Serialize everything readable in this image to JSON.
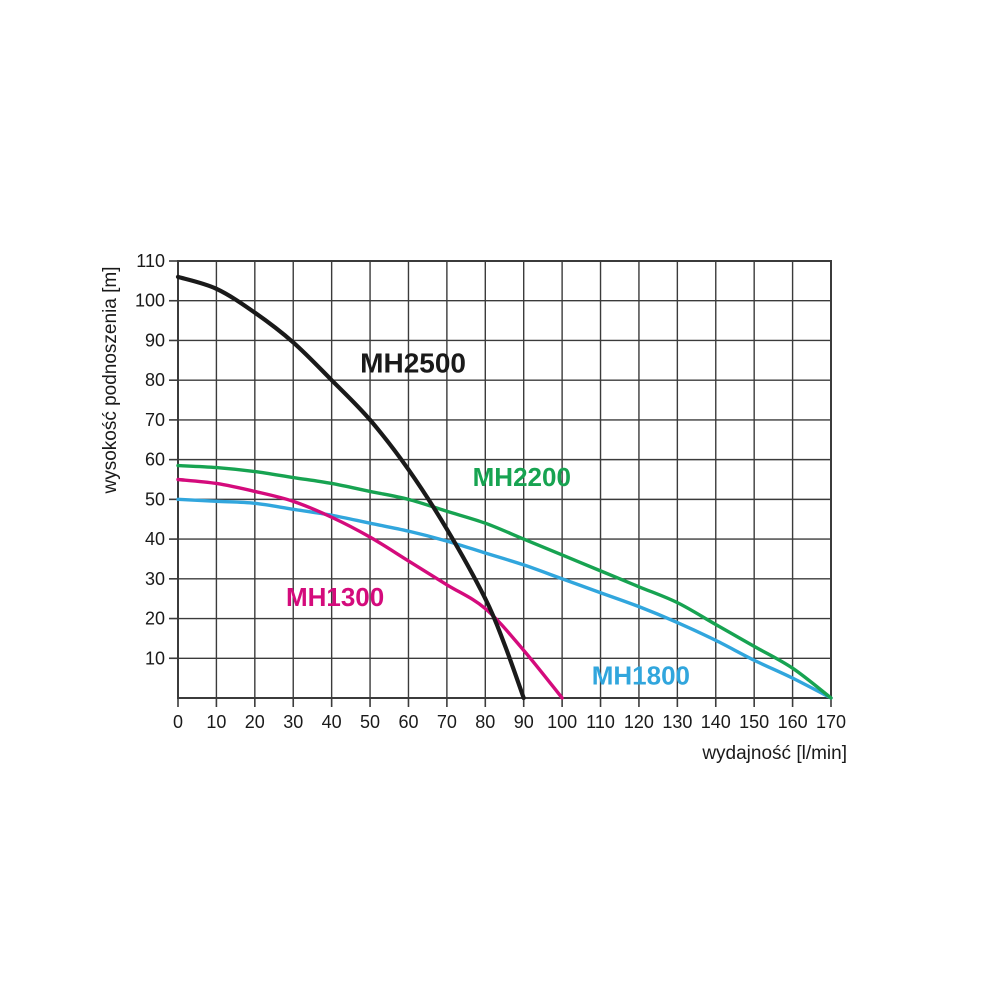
{
  "chart_data": {
    "type": "line",
    "title": "",
    "xlabel": "wydajność [l/min]",
    "ylabel": "wysokość podnoszenia [m]",
    "xlim": [
      0,
      170
    ],
    "ylim": [
      0,
      110
    ],
    "xticks": [
      "0",
      "10",
      "20",
      "30",
      "40",
      "50",
      "60",
      "70",
      "80",
      "90",
      "100",
      "110",
      "120",
      "130",
      "140",
      "150",
      "160",
      "170"
    ],
    "yticks": [
      "10",
      "20",
      "30",
      "40",
      "50",
      "60",
      "70",
      "80",
      "90",
      "100",
      "110"
    ],
    "grid": true,
    "grid_color": "#3b3b3b",
    "axis_text_color": "#1a1a1a",
    "legend_position": "labels-on-curves",
    "series": [
      {
        "name": "MH1800",
        "color": "#31a6dd",
        "label_pos": {
          "x": 120.5,
          "y": 5.7
        },
        "points": [
          [
            0,
            50
          ],
          [
            10,
            49.5
          ],
          [
            20,
            49
          ],
          [
            30,
            47.5
          ],
          [
            40,
            46
          ],
          [
            50,
            44
          ],
          [
            60,
            42
          ],
          [
            70,
            39.5
          ],
          [
            80,
            36.5
          ],
          [
            90,
            33.5
          ],
          [
            100,
            30
          ],
          [
            110,
            26.5
          ],
          [
            120,
            23
          ],
          [
            130,
            19
          ],
          [
            140,
            14.5
          ],
          [
            150,
            9.5
          ],
          [
            160,
            5
          ],
          [
            170,
            0
          ]
        ]
      },
      {
        "name": "MH2200",
        "color": "#17a351",
        "label_pos": {
          "x": 89.5,
          "y": 55.6
        },
        "points": [
          [
            0,
            58.5
          ],
          [
            10,
            58
          ],
          [
            20,
            57
          ],
          [
            30,
            55.5
          ],
          [
            40,
            54
          ],
          [
            50,
            52
          ],
          [
            60,
            50
          ],
          [
            70,
            47
          ],
          [
            80,
            44
          ],
          [
            90,
            40
          ],
          [
            100,
            36
          ],
          [
            110,
            32
          ],
          [
            120,
            28
          ],
          [
            130,
            24
          ],
          [
            140,
            18.5
          ],
          [
            150,
            13
          ],
          [
            160,
            7.5
          ],
          [
            170,
            0
          ]
        ]
      },
      {
        "name": "MH1300",
        "color": "#d40b7c",
        "label_pos": {
          "x": 40.9,
          "y": 25.4
        },
        "points": [
          [
            0,
            55
          ],
          [
            10,
            54
          ],
          [
            20,
            52
          ],
          [
            30,
            49.5
          ],
          [
            40,
            45.5
          ],
          [
            50,
            40.5
          ],
          [
            60,
            34.5
          ],
          [
            70,
            28.5
          ],
          [
            80,
            22.5
          ],
          [
            90,
            12
          ],
          [
            100,
            0
          ]
        ]
      },
      {
        "name": "MH2500",
        "color": "#1a1a1a",
        "label_pos": {
          "x": 61.2,
          "y": 84.2
        },
        "points": [
          [
            0,
            106
          ],
          [
            10,
            103
          ],
          [
            20,
            97
          ],
          [
            30,
            89.5
          ],
          [
            40,
            80
          ],
          [
            50,
            70
          ],
          [
            60,
            57.5
          ],
          [
            70,
            42.5
          ],
          [
            80,
            25
          ],
          [
            85,
            13.5
          ],
          [
            90,
            0
          ]
        ]
      }
    ]
  }
}
